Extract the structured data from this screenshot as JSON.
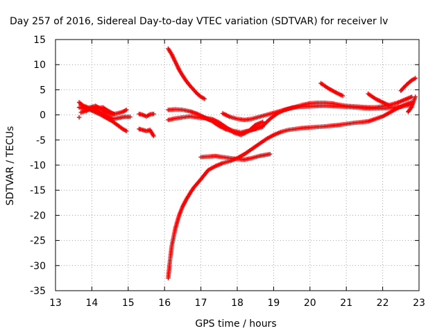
{
  "chart_data": {
    "type": "scatter",
    "title": "Day 257 of 2016, Sidereal Day-to-day VTEC variation (SDTVAR) for receiver lv",
    "xlabel": "GPS time / hours",
    "ylabel": "SDTVAR / TECUs",
    "xlim": [
      13,
      23
    ],
    "ylim": [
      -35,
      15
    ],
    "xticks": [
      "13",
      "14",
      "15",
      "16",
      "17",
      "18",
      "19",
      "20",
      "21",
      "22",
      "23"
    ],
    "yticks": [
      "15",
      "10",
      "5",
      "0",
      "-5",
      "-10",
      "-15",
      "-20",
      "-25",
      "-30",
      "-35"
    ],
    "grid": true,
    "marker": "+",
    "color": "#ff0000",
    "series": [
      {
        "x": [
          13.65,
          13.8,
          13.95,
          14.1,
          14.25,
          14.4,
          14.55,
          14.7,
          14.85,
          14.95
        ],
        "y": [
          2.5,
          1.6,
          1.0,
          0.5,
          0.0,
          -0.6,
          -1.2,
          -2.0,
          -2.8,
          -3.2
        ]
      },
      {
        "x": [
          13.65,
          13.8,
          13.95,
          14.1,
          14.25,
          14.4,
          14.55,
          14.7,
          14.85,
          14.95
        ],
        "y": [
          1.5,
          1.2,
          1.5,
          1.8,
          1.2,
          0.5,
          0.1,
          0.3,
          0.6,
          1.0
        ]
      },
      {
        "x": [
          13.7,
          13.85,
          14.0,
          14.15,
          14.3,
          14.45,
          14.6,
          14.75,
          14.9,
          15.05
        ],
        "y": [
          0.5,
          0.8,
          1.4,
          0.8,
          0.2,
          -0.4,
          -0.8,
          -0.6,
          -0.4,
          -0.4
        ]
      },
      {
        "x": [
          13.7,
          13.85,
          14.0,
          14.15,
          14.3,
          14.45,
          14.6
        ],
        "y": [
          2.0,
          1.6,
          1.0,
          1.3,
          1.5,
          0.8,
          0.2
        ]
      },
      {
        "x": [
          13.65
        ],
        "y": [
          -0.5
        ]
      },
      {
        "x": [
          15.3,
          15.4,
          15.5,
          15.6,
          15.7
        ],
        "y": [
          0.2,
          0.0,
          -0.3,
          0.1,
          0.2
        ]
      },
      {
        "x": [
          15.3,
          15.4,
          15.5,
          15.6,
          15.7
        ],
        "y": [
          -2.8,
          -3.0,
          -3.2,
          -3.0,
          -4.2
        ]
      },
      {
        "x": [
          16.1,
          16.2,
          16.3,
          16.4,
          16.5,
          16.6,
          16.7,
          16.8,
          16.9,
          17.0,
          17.1
        ],
        "y": [
          13.2,
          12.0,
          10.5,
          9.0,
          7.8,
          6.7,
          5.8,
          5.0,
          4.2,
          3.6,
          3.2
        ]
      },
      {
        "x": [
          16.1,
          16.3,
          16.5,
          16.7,
          16.9,
          17.1,
          17.3,
          17.5,
          17.7,
          17.9,
          18.1,
          18.3,
          18.5,
          18.7
        ],
        "y": [
          -1.0,
          -0.7,
          -0.5,
          -0.3,
          -0.5,
          -0.6,
          -0.8,
          -1.5,
          -2.5,
          -3.5,
          -4.0,
          -3.3,
          -2.0,
          -1.4
        ]
      },
      {
        "x": [
          16.1,
          16.3,
          16.5,
          16.7,
          16.9,
          17.1,
          17.3,
          17.5,
          17.7,
          17.9,
          18.1,
          18.3,
          18.5,
          18.7
        ],
        "y": [
          1.0,
          1.1,
          1.0,
          0.7,
          0.2,
          -0.5,
          -1.2,
          -2.2,
          -2.9,
          -3.3,
          -3.6,
          -3.2,
          -2.8,
          -2.4
        ]
      },
      {
        "x": [
          17.6,
          17.8,
          18.0,
          18.2,
          18.4,
          18.6,
          18.8,
          19.0,
          19.2,
          19.4,
          19.6,
          19.8,
          20.0,
          20.2,
          20.4,
          20.6,
          20.8,
          21.0,
          21.2,
          21.4,
          21.6,
          21.8,
          22.0,
          22.2,
          22.4,
          22.6,
          22.8
        ],
        "y": [
          0.3,
          -0.4,
          -0.8,
          -1.0,
          -0.8,
          -0.4,
          0.0,
          0.4,
          0.8,
          1.2,
          1.6,
          2.0,
          2.3,
          2.4,
          2.4,
          2.3,
          2.0,
          1.8,
          1.7,
          1.6,
          1.5,
          1.5,
          1.7,
          2.0,
          2.4,
          3.0,
          3.6
        ]
      },
      {
        "x": [
          17.0,
          17.3,
          17.6,
          17.9,
          18.1,
          18.4,
          18.7,
          18.9,
          19.1,
          19.3,
          19.5,
          19.7,
          20.0,
          20.4,
          20.8,
          21.2,
          21.6,
          22.0,
          22.4,
          22.8
        ],
        "y": [
          -0.3,
          -1.2,
          -2.4,
          -3.2,
          -3.5,
          -3.0,
          -2.2,
          -0.8,
          0.3,
          1.0,
          1.4,
          1.6,
          1.7,
          1.8,
          1.7,
          1.5,
          1.3,
          1.3,
          1.5,
          2.0
        ]
      },
      {
        "x": [
          16.1,
          16.15,
          16.2,
          16.3,
          16.4,
          16.5,
          16.6,
          16.7,
          16.8,
          17.0,
          17.2,
          17.4,
          17.6,
          17.8,
          18.0,
          18.2,
          18.4,
          18.6,
          18.8,
          19.0,
          19.2,
          19.4,
          19.6,
          19.8,
          20.0,
          20.4,
          20.8,
          21.2,
          21.6,
          22.0,
          22.2,
          22.4,
          22.6,
          22.8
        ],
        "y": [
          -32.5,
          -29.0,
          -26.0,
          -22.5,
          -20.0,
          -18.2,
          -16.8,
          -15.6,
          -14.5,
          -12.8,
          -11.0,
          -10.2,
          -9.6,
          -9.2,
          -8.6,
          -7.8,
          -6.8,
          -5.8,
          -4.8,
          -4.0,
          -3.4,
          -3.0,
          -2.8,
          -2.6,
          -2.5,
          -2.3,
          -2.0,
          -1.6,
          -1.3,
          -0.3,
          0.5,
          1.3,
          2.0,
          2.5
        ]
      },
      {
        "x": [
          17.0,
          17.2,
          17.4,
          17.6,
          17.8,
          18.0,
          18.2,
          18.4,
          18.6,
          18.9
        ],
        "y": [
          -8.4,
          -8.3,
          -8.2,
          -8.4,
          -8.6,
          -8.8,
          -8.9,
          -8.6,
          -8.2,
          -7.8
        ]
      },
      {
        "x": [
          20.3,
          20.5,
          20.7,
          20.9
        ],
        "y": [
          6.3,
          5.3,
          4.5,
          3.8
        ]
      },
      {
        "x": [
          21.6,
          21.8,
          22.0,
          22.2
        ],
        "y": [
          4.2,
          3.2,
          2.5,
          1.8
        ]
      },
      {
        "x": [
          22.5,
          22.6,
          22.7,
          22.8,
          22.9
        ],
        "y": [
          4.8,
          5.6,
          6.3,
          6.9,
          7.3
        ]
      },
      {
        "x": [
          22.7,
          22.8,
          22.9
        ],
        "y": [
          0.6,
          1.6,
          3.6
        ]
      }
    ]
  }
}
